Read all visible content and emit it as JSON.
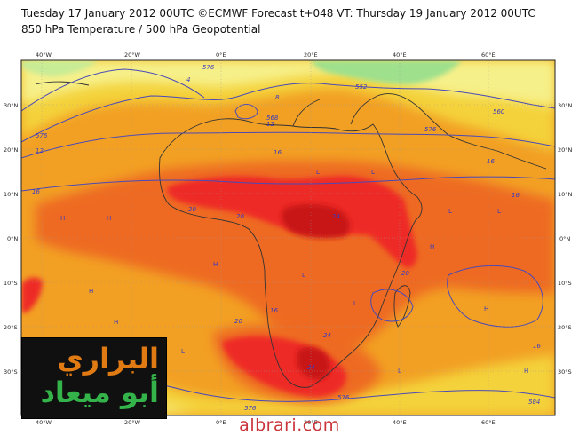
{
  "header": {
    "line1": "Tuesday 17 January 2012 00UTC ©ECMWF Forecast t+048 VT: Thursday 19 January 2012 00UTC",
    "line2": "850 hPa Temperature / 500 hPa Geopotential"
  },
  "map": {
    "lon_labels": [
      "40°W",
      "20°W",
      "0°E",
      "20°E",
      "40°E",
      "60°E"
    ],
    "lat_labels": [
      "30°N",
      "20°N",
      "10°N",
      "0°N",
      "10°S",
      "20°S",
      "30°S"
    ],
    "contour_labels": [
      "576",
      "576",
      "552",
      "560",
      "576",
      "568",
      "576",
      "584",
      "576"
    ],
    "temperature_labels": [
      "4",
      "8",
      "12",
      "12",
      "16",
      "16",
      "16",
      "16",
      "20",
      "20",
      "20",
      "24",
      "24",
      "24",
      "20",
      "16",
      "16"
    ],
    "pressure_marks": [
      "H",
      "H",
      "H",
      "H",
      "L",
      "L",
      "L",
      "L",
      "L",
      "H",
      "H",
      "L",
      "H",
      "L",
      "H",
      "L"
    ],
    "colors": {
      "cold_green": "#9ee08c",
      "cool_yellow": "#f6f08a",
      "mild_yellow": "#f4d23a",
      "warm_orange": "#f2a024",
      "hot_orange": "#ee6a24",
      "very_hot_red": "#ee2a26",
      "extreme_red": "#c81818",
      "contour_blue": "#4a4ab8",
      "coast": "#333333"
    }
  },
  "logo": {
    "line1": "البراري",
    "line2": "أبو ميعاد"
  },
  "footer": {
    "url": "albrari.com"
  }
}
